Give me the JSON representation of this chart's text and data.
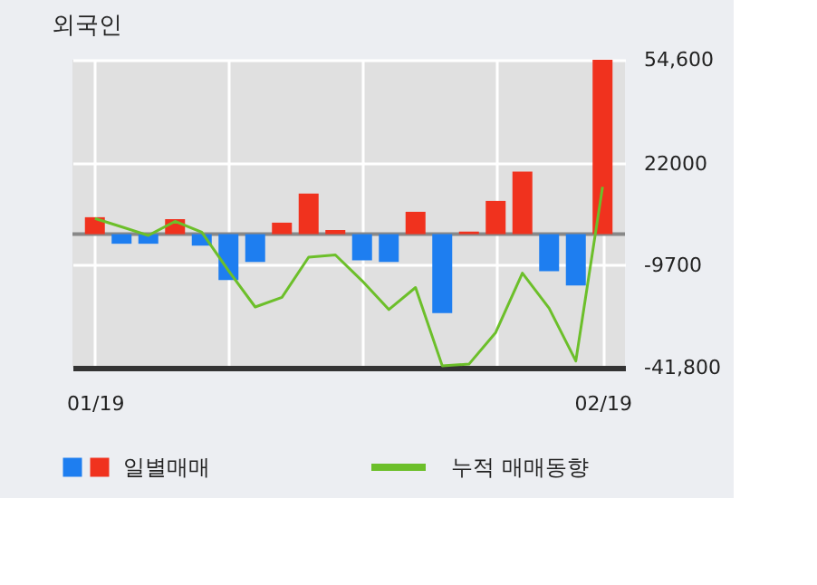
{
  "chart_data": {
    "type": "bar",
    "title": "외국인",
    "categories": [
      "01/19",
      null,
      null,
      null,
      null,
      null,
      null,
      null,
      null,
      null,
      null,
      null,
      null,
      null,
      null,
      null,
      null,
      null,
      null,
      "02/19"
    ],
    "series": [
      {
        "name": "일별매매",
        "colors": [
          "#f0321e",
          "#1e7ef0",
          "#1e7ef0",
          "#f0321e",
          "#1e7ef0",
          "#1e7ef0",
          "#1e7ef0",
          "#f0321e",
          "#f0321e",
          "#f0321e",
          "#1e7ef0",
          "#1e7ef0",
          "#f0321e",
          "#1e7ef0",
          "#f0321e",
          "#f0321e",
          "#f0321e",
          "#1e7ef0",
          "#1e7ef0",
          "#f0321e"
        ],
        "values": [
          5300,
          -3000,
          -3000,
          4700,
          -3600,
          -14400,
          -8700,
          3600,
          12700,
          1300,
          -8200,
          -8700,
          7000,
          -24700,
          800,
          10400,
          19600,
          -11600,
          -16100,
          54600
        ]
      },
      {
        "name": "누적 매매동향",
        "type": "line",
        "color": "#6cbf2a",
        "values": [
          4900,
          2300,
          -400,
          4000,
          600,
          -11400,
          -22800,
          -19800,
          -7200,
          -6500,
          -14600,
          -23600,
          -16700,
          -41200,
          -40700,
          -30800,
          -12200,
          -23200,
          -39700,
          14800
        ]
      }
    ],
    "ylim": [
      -41800,
      54600
    ],
    "yticks": [
      {
        "value": 54600,
        "label": "54,600"
      },
      22000,
      -9700,
      {
        "value": -41800,
        "label": "-41,800"
      }
    ],
    "grid": true,
    "legend": "bottom"
  }
}
